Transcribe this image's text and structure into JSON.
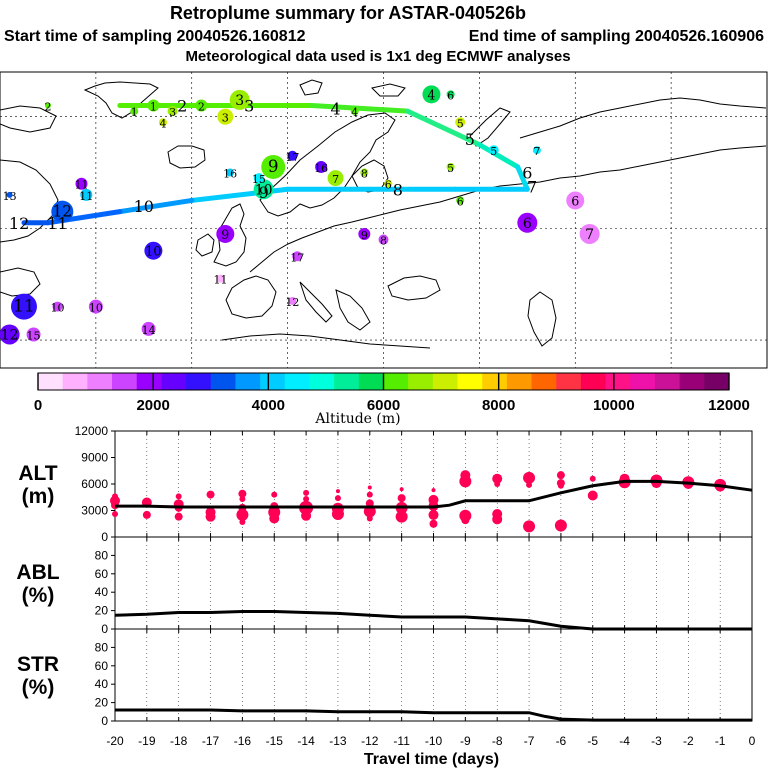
{
  "header": {
    "title": "Retroplume summary for ASTAR-040526b",
    "start": "Start time of sampling 20040526.160812",
    "end": "End time of sampling 20040526.160906",
    "met": "Meteorological data used is 1x1 deg ECMWF analyses"
  },
  "colorbar": {
    "colors": [
      "#ffe0ff",
      "#ffb0ff",
      "#ee80ff",
      "#cc44ff",
      "#9900ff",
      "#6600ff",
      "#3311ff",
      "#0055ee",
      "#0099ff",
      "#00ccff",
      "#00eeff",
      "#00ffdd",
      "#00ee99",
      "#00dd55",
      "#55ee00",
      "#99ee00",
      "#ccee00",
      "#ffff00",
      "#ffcc00",
      "#ff9900",
      "#ff6600",
      "#ff3344",
      "#ff0055",
      "#ff1188",
      "#ee11aa",
      "#cc1199",
      "#990077",
      "#770066"
    ],
    "boundaries": [
      0,
      2000,
      4000,
      6000,
      8000,
      10000,
      12000
    ],
    "labels": [
      "0",
      "2000",
      "4000",
      "6000",
      "8000",
      "10000",
      "12000"
    ],
    "title": "Altitude (m)"
  },
  "map": {
    "trajectory": [
      {
        "lon": -55,
        "lat": 72,
        "color": "#55ee00"
      },
      {
        "lon": -40,
        "lat": 72,
        "color": "#55ee00"
      },
      {
        "lon": -15,
        "lat": 72,
        "color": "#44ee22"
      },
      {
        "lon": 5,
        "lat": 71,
        "color": "#22ee88"
      },
      {
        "lon": 20,
        "lat": 65,
        "color": "#00eebb"
      },
      {
        "lon": 28,
        "lat": 61,
        "color": "#00ddee"
      },
      {
        "lon": 30,
        "lat": 57,
        "color": "#00ccff"
      },
      {
        "lon": 15,
        "lat": 57,
        "color": "#00ccff"
      },
      {
        "lon": -20,
        "lat": 57,
        "color": "#00ccff"
      },
      {
        "lon": -40,
        "lat": 55,
        "color": "#0099ff"
      },
      {
        "lon": -55,
        "lat": 53,
        "color": "#0066ff"
      },
      {
        "lon": -70,
        "lat": 51,
        "color": "#0055ee"
      },
      {
        "lon": -75,
        "lat": 51,
        "color": "#0055ee"
      }
    ],
    "clusters": [
      {
        "lon": -30,
        "lat": 73,
        "r": 10,
        "color": "#99ee00",
        "label": "3"
      },
      {
        "lon": -38,
        "lat": 72,
        "r": 6,
        "color": "#55ee00",
        "label": "2"
      },
      {
        "lon": -44,
        "lat": 71,
        "r": 5,
        "color": "#99ee00",
        "label": "3"
      },
      {
        "lon": -48,
        "lat": 72,
        "r": 6,
        "color": "#55ee00",
        "label": "1"
      },
      {
        "lon": -52,
        "lat": 71,
        "r": 4,
        "color": "#55ee00",
        "label": "1"
      },
      {
        "lon": -46,
        "lat": 69,
        "r": 4,
        "color": "#ccee00",
        "label": "4"
      },
      {
        "lon": -33,
        "lat": 70,
        "r": 8,
        "color": "#ccee00",
        "label": "3"
      },
      {
        "lon": -70,
        "lat": 72,
        "r": 3,
        "color": "#55ee00",
        "label": "2"
      },
      {
        "lon": -6,
        "lat": 71,
        "r": 4,
        "color": "#55ee00",
        "label": "4"
      },
      {
        "lon": 10,
        "lat": 74,
        "r": 9,
        "color": "#00dd55",
        "label": "4"
      },
      {
        "lon": 14,
        "lat": 74,
        "r": 4,
        "color": "#00dd55",
        "label": "6"
      },
      {
        "lon": 16,
        "lat": 69,
        "r": 5,
        "color": "#ccee00",
        "label": "5"
      },
      {
        "lon": 23,
        "lat": 64,
        "r": 5,
        "color": "#00eeff",
        "label": "5"
      },
      {
        "lon": 32,
        "lat": 64,
        "r": 4,
        "color": "#00eeff",
        "label": "7"
      },
      {
        "lon": 14,
        "lat": 61,
        "r": 4,
        "color": "#99ee00",
        "label": "5"
      },
      {
        "lon": -10,
        "lat": 59,
        "r": 8,
        "color": "#99ee00",
        "label": "7"
      },
      {
        "lon": -4,
        "lat": 60,
        "r": 4,
        "color": "#99ee00",
        "label": "8"
      },
      {
        "lon": 1,
        "lat": 58,
        "r": 4,
        "color": "#ccee00",
        "label": "6"
      },
      {
        "lon": 16,
        "lat": 55,
        "r": 4,
        "color": "#55ee00",
        "label": "6"
      },
      {
        "lon": -23,
        "lat": 61,
        "r": 12,
        "color": "#55ee00",
        "label": "9"
      },
      {
        "lon": -25,
        "lat": 57,
        "r": 10,
        "color": "#00ee99",
        "label": "10"
      },
      {
        "lon": -26,
        "lat": 59,
        "r": 5,
        "color": "#00eeff",
        "label": "15"
      },
      {
        "lon": -32,
        "lat": 60,
        "r": 4,
        "color": "#00ccff",
        "label": "16"
      },
      {
        "lon": -19,
        "lat": 63,
        "r": 5,
        "color": "#3311ff",
        "label": "17"
      },
      {
        "lon": -13,
        "lat": 61,
        "r": 6,
        "color": "#6600ff",
        "label": "16"
      },
      {
        "lon": -63,
        "lat": 58,
        "r": 6,
        "color": "#9900ff",
        "label": "11"
      },
      {
        "lon": -62,
        "lat": 56,
        "r": 6,
        "color": "#00ccff",
        "label": "11"
      },
      {
        "lon": -78,
        "lat": 56,
        "r": 3,
        "color": "#0055ee",
        "label": "13"
      },
      {
        "lon": -67,
        "lat": 53,
        "r": 11,
        "color": "#0055ee",
        "label": "12"
      },
      {
        "lon": -33,
        "lat": 49,
        "r": 9,
        "color": "#9900ff",
        "label": "9"
      },
      {
        "lon": -48,
        "lat": 46,
        "r": 9,
        "color": "#3311ff",
        "label": "10"
      },
      {
        "lon": -18,
        "lat": 45,
        "r": 5,
        "color": "#cc44ff",
        "label": "17"
      },
      {
        "lon": -4,
        "lat": 49,
        "r": 6,
        "color": "#9900ff",
        "label": "9"
      },
      {
        "lon": 0,
        "lat": 48,
        "r": 5,
        "color": "#cc44ff",
        "label": "8"
      },
      {
        "lon": 30,
        "lat": 51,
        "r": 10,
        "color": "#9900ff",
        "label": "6"
      },
      {
        "lon": 40,
        "lat": 55,
        "r": 9,
        "color": "#ee80ff",
        "label": "6"
      },
      {
        "lon": 43,
        "lat": 49,
        "r": 10,
        "color": "#ee80ff",
        "label": "7"
      },
      {
        "lon": -34,
        "lat": 41,
        "r": 4,
        "color": "#ffb0ff",
        "label": "11"
      },
      {
        "lon": -19,
        "lat": 37,
        "r": 4,
        "color": "#ee80ff",
        "label": "12"
      },
      {
        "lon": -75,
        "lat": 36,
        "r": 13,
        "color": "#3311ff",
        "label": "11"
      },
      {
        "lon": -68,
        "lat": 36,
        "r": 5,
        "color": "#cc44ff",
        "label": "10"
      },
      {
        "lon": -60,
        "lat": 36,
        "r": 7,
        "color": "#cc44ff",
        "label": "10"
      },
      {
        "lon": -78,
        "lat": 31,
        "r": 10,
        "color": "#6600ff",
        "label": "12"
      },
      {
        "lon": -73,
        "lat": 31,
        "r": 7,
        "color": "#cc44ff",
        "label": "15"
      },
      {
        "lon": -49,
        "lat": 32,
        "r": 7,
        "color": "#cc44ff",
        "label": "14"
      }
    ],
    "trajectory_labels": [
      {
        "lon": -42,
        "lat": 72,
        "label": "2"
      },
      {
        "lon": -28,
        "lat": 72,
        "label": "3"
      },
      {
        "lon": -10,
        "lat": 71.5,
        "label": "4"
      },
      {
        "lon": 18,
        "lat": 66,
        "label": "5"
      },
      {
        "lon": 30,
        "lat": 60,
        "label": "6"
      },
      {
        "lon": 31,
        "lat": 57.5,
        "label": "7"
      },
      {
        "lon": 3,
        "lat": 57,
        "label": "8"
      },
      {
        "lon": -25,
        "lat": 56.5,
        "label": "9"
      },
      {
        "lon": -50,
        "lat": 54,
        "label": "10"
      },
      {
        "lon": -68,
        "lat": 51,
        "label": "11"
      },
      {
        "lon": -76,
        "lat": 51,
        "label": "12"
      }
    ]
  },
  "chart_data": [
    {
      "type": "scatter",
      "panel": "ALT",
      "title": "ALT (m)",
      "ylabel_line1": "ALT",
      "ylabel_line2": "(m)",
      "xlabel": "Travel time (days)",
      "xlim": [
        -20,
        0
      ],
      "ylim": [
        0,
        12000
      ],
      "yticks": [
        0,
        3000,
        6000,
        9000,
        12000
      ],
      "ytick_labels": [
        "0",
        "3000",
        "6000",
        "9000",
        "12000"
      ],
      "mean_line": {
        "x": [
          -20,
          -19,
          -18,
          -17,
          -16,
          -15,
          -14,
          -13,
          -12,
          -11,
          -10,
          -9.5,
          -9,
          -8,
          -7,
          -6,
          -5,
          -4,
          -3,
          -2,
          -1,
          0
        ],
        "y": [
          3500,
          3500,
          3400,
          3400,
          3400,
          3400,
          3400,
          3400,
          3400,
          3400,
          3400,
          3600,
          4100,
          4100,
          4100,
          5000,
          5800,
          6300,
          6300,
          6100,
          5800,
          5300
        ]
      },
      "clusters": [
        {
          "x": -20,
          "y": 4600,
          "r": 3
        },
        {
          "x": -20,
          "y": 4100,
          "r": 5
        },
        {
          "x": -20,
          "y": 3600,
          "r": 4
        },
        {
          "x": -20,
          "y": 2600,
          "r": 3
        },
        {
          "x": -19,
          "y": 3900,
          "r": 5
        },
        {
          "x": -19,
          "y": 2500,
          "r": 4
        },
        {
          "x": -18,
          "y": 4600,
          "r": 3
        },
        {
          "x": -18,
          "y": 3700,
          "r": 5
        },
        {
          "x": -18,
          "y": 3300,
          "r": 4
        },
        {
          "x": -18,
          "y": 2300,
          "r": 4
        },
        {
          "x": -17,
          "y": 4800,
          "r": 4
        },
        {
          "x": -17,
          "y": 2800,
          "r": 5
        },
        {
          "x": -17,
          "y": 2300,
          "r": 5
        },
        {
          "x": -16,
          "y": 4900,
          "r": 4
        },
        {
          "x": -16,
          "y": 4300,
          "r": 3
        },
        {
          "x": -16,
          "y": 3300,
          "r": 4
        },
        {
          "x": -16,
          "y": 2500,
          "r": 6
        },
        {
          "x": -16,
          "y": 1700,
          "r": 3
        },
        {
          "x": -15,
          "y": 4800,
          "r": 3
        },
        {
          "x": -15,
          "y": 3500,
          "r": 4
        },
        {
          "x": -15,
          "y": 2800,
          "r": 6
        },
        {
          "x": -15,
          "y": 2100,
          "r": 5
        },
        {
          "x": -14,
          "y": 5000,
          "r": 3
        },
        {
          "x": -14,
          "y": 4300,
          "r": 3
        },
        {
          "x": -14,
          "y": 3300,
          "r": 7
        },
        {
          "x": -14,
          "y": 2400,
          "r": 5
        },
        {
          "x": -13,
          "y": 5200,
          "r": 2
        },
        {
          "x": -13,
          "y": 4400,
          "r": 3
        },
        {
          "x": -13,
          "y": 3200,
          "r": 6
        },
        {
          "x": -13,
          "y": 2600,
          "r": 6
        },
        {
          "x": -12,
          "y": 5600,
          "r": 2
        },
        {
          "x": -12,
          "y": 4800,
          "r": 3
        },
        {
          "x": -12,
          "y": 3800,
          "r": 4
        },
        {
          "x": -12,
          "y": 2900,
          "r": 6
        },
        {
          "x": -12,
          "y": 2100,
          "r": 3
        },
        {
          "x": -11,
          "y": 5400,
          "r": 2
        },
        {
          "x": -11,
          "y": 4400,
          "r": 4
        },
        {
          "x": -11,
          "y": 3300,
          "r": 6
        },
        {
          "x": -11,
          "y": 2300,
          "r": 6
        },
        {
          "x": -10,
          "y": 5300,
          "r": 2
        },
        {
          "x": -10,
          "y": 4200,
          "r": 5
        },
        {
          "x": -10,
          "y": 3500,
          "r": 5
        },
        {
          "x": -10,
          "y": 2500,
          "r": 5
        },
        {
          "x": -10,
          "y": 1500,
          "r": 4
        },
        {
          "x": -9,
          "y": 7000,
          "r": 5
        },
        {
          "x": -9,
          "y": 6300,
          "r": 6
        },
        {
          "x": -9,
          "y": 2400,
          "r": 6
        },
        {
          "x": -9,
          "y": 1900,
          "r": 4
        },
        {
          "x": -8,
          "y": 6600,
          "r": 5
        },
        {
          "x": -8,
          "y": 6000,
          "r": 3
        },
        {
          "x": -8,
          "y": 2600,
          "r": 5
        },
        {
          "x": -8,
          "y": 2000,
          "r": 5
        },
        {
          "x": -7,
          "y": 6700,
          "r": 6
        },
        {
          "x": -7,
          "y": 5900,
          "r": 3
        },
        {
          "x": -7,
          "y": 1200,
          "r": 6
        },
        {
          "x": -6,
          "y": 7000,
          "r": 4
        },
        {
          "x": -6,
          "y": 6100,
          "r": 4
        },
        {
          "x": -6,
          "y": 5800,
          "r": 3
        },
        {
          "x": -6,
          "y": 1300,
          "r": 6
        },
        {
          "x": -5,
          "y": 6600,
          "r": 3
        },
        {
          "x": -5,
          "y": 4700,
          "r": 5
        },
        {
          "x": -4,
          "y": 6600,
          "r": 5
        },
        {
          "x": -4,
          "y": 6200,
          "r": 6
        },
        {
          "x": -3,
          "y": 6400,
          "r": 6
        },
        {
          "x": -3,
          "y": 6100,
          "r": 5
        },
        {
          "x": -2,
          "y": 6200,
          "r": 6
        },
        {
          "x": -2,
          "y": 6000,
          "r": 5
        },
        {
          "x": -1,
          "y": 5900,
          "r": 6
        },
        {
          "x": -1,
          "y": 5700,
          "r": 5
        }
      ]
    },
    {
      "type": "line",
      "panel": "ABL",
      "title": "ABL (%)",
      "ylabel_line1": "ABL",
      "ylabel_line2": "(%)",
      "xlim": [
        -20,
        0
      ],
      "ylim": [
        0,
        100
      ],
      "yticks": [
        0,
        20,
        40,
        60,
        80
      ],
      "ytick_labels": [
        "0",
        "20",
        "40",
        "60",
        "80"
      ],
      "x": [
        -20,
        -19,
        -18,
        -17,
        -16,
        -15,
        -14,
        -13,
        -12,
        -11,
        -10,
        -9,
        -8,
        -7,
        -6.5,
        -6,
        -5,
        -4,
        -3,
        -2,
        -1,
        0
      ],
      "y": [
        15,
        16,
        18,
        18,
        19,
        19,
        18,
        17,
        15,
        13,
        13,
        13,
        11,
        9,
        6,
        3,
        0,
        0,
        0,
        0,
        0,
        0
      ]
    },
    {
      "type": "line",
      "panel": "STR",
      "title": "STR (%)",
      "ylabel_line1": "STR",
      "ylabel_line2": "(%)",
      "xlabel": "Travel time (days)",
      "xlim": [
        -20,
        0
      ],
      "ylim": [
        0,
        100
      ],
      "yticks": [
        0,
        20,
        40,
        60,
        80
      ],
      "ytick_labels": [
        "0",
        "20",
        "40",
        "60",
        "80"
      ],
      "xticks": [
        -20,
        -19,
        -18,
        -17,
        -16,
        -15,
        -14,
        -13,
        -12,
        -11,
        -10,
        -9,
        -8,
        -7,
        -6,
        -5,
        -4,
        -3,
        -2,
        -1,
        0
      ],
      "xtick_labels": [
        "−20",
        "−19",
        "−18",
        "−17",
        "−16",
        "−15",
        "−14",
        "−13",
        "−12",
        "−11",
        "−10",
        "−9",
        "−8",
        "−7",
        "−6",
        "−5",
        "−4",
        "−3",
        "−2",
        "−1",
        "0"
      ],
      "xtick_text": [
        "-20",
        "-19",
        "-18",
        "-17",
        "-16",
        "-15",
        "-14",
        "-13",
        "-12",
        "-11",
        "-10",
        "-9",
        "-8",
        "-7",
        "-6",
        "-5",
        "-4",
        "-3",
        "-2",
        "-1",
        "0"
      ],
      "x": [
        -20,
        -19,
        -18,
        -17,
        -16,
        -15,
        -14,
        -13,
        -12,
        -11,
        -10,
        -9,
        -8,
        -7,
        -6.5,
        -6,
        -5,
        -4,
        -3,
        -2,
        -1,
        0
      ],
      "y": [
        12,
        12,
        12,
        12,
        11,
        11,
        11,
        10,
        10,
        10,
        9,
        9,
        9,
        9,
        5,
        2,
        1,
        1,
        1,
        1,
        1,
        1
      ]
    }
  ]
}
